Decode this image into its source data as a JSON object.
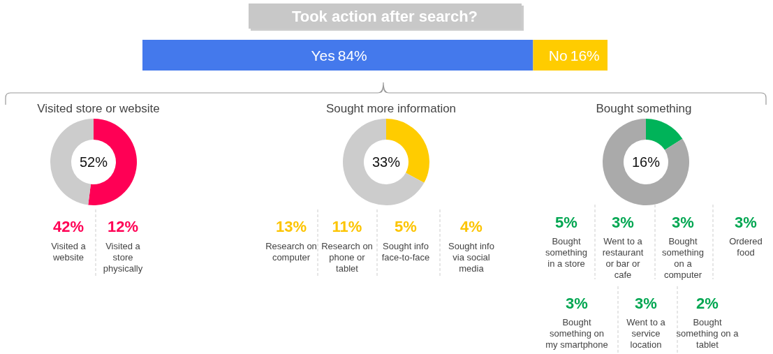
{
  "chart_data": [
    {
      "type": "bar",
      "title": "Took action after search?",
      "orientation": "horizontal",
      "stacked": true,
      "categories": [
        null
      ],
      "series": [
        {
          "name": "Yes",
          "color": "#4479ec",
          "values": [
            84
          ],
          "value_labels": [
            "84%"
          ]
        },
        {
          "name": "No",
          "color": "#ffcc00",
          "values": [
            16
          ],
          "value_labels": [
            "16%"
          ]
        }
      ]
    },
    {
      "type": "donut",
      "title": "Visited store or website",
      "categories": [
        null,
        null
      ],
      "values": [
        52,
        48
      ],
      "colors": [
        "#ff0055",
        "#cccccc"
      ],
      "value_labels": [
        "52%",
        null
      ]
    },
    {
      "type": "other",
      "categories": [
        "Visited a website",
        "Visited a store physically"
      ],
      "values": [
        42,
        12
      ],
      "value_labels": [
        "42%",
        "12%"
      ],
      "color": "#ff0055"
    },
    {
      "type": "donut",
      "title": "Sought more information",
      "categories": [
        null,
        null
      ],
      "values": [
        33,
        67
      ],
      "colors": [
        "#ffcc00",
        "#cccccc"
      ],
      "value_labels": [
        "33%",
        null
      ]
    },
    {
      "type": "other",
      "categories": [
        "Research on computer",
        "Research on phone or tablet",
        "Sought info face-to-face",
        "Sought info via social media"
      ],
      "values": [
        13,
        11,
        5,
        4
      ],
      "value_labels": [
        "13%",
        "11%",
        "5%",
        "4%"
      ],
      "color": "#fcc400"
    },
    {
      "type": "donut",
      "title": "Bought something",
      "categories": [
        null,
        null
      ],
      "values": [
        16,
        84
      ],
      "colors": [
        "#00b359",
        "#aaaaaa"
      ],
      "value_labels": [
        "16%",
        null
      ]
    },
    {
      "type": "other",
      "categories": [
        "Bought something in a store",
        "Went to a restaurant or bar or cafe",
        "Bought something on a computer",
        "Ordered food",
        "Bought something on my smartphone",
        "Went to a service location",
        "Bought something on a tablet"
      ],
      "values": [
        5,
        3,
        3,
        3,
        3,
        3,
        2
      ],
      "value_labels": [
        "5%",
        "3%",
        "3%",
        "3%",
        "3%",
        "3%",
        "2%"
      ],
      "color": "#00a651"
    }
  ]
}
